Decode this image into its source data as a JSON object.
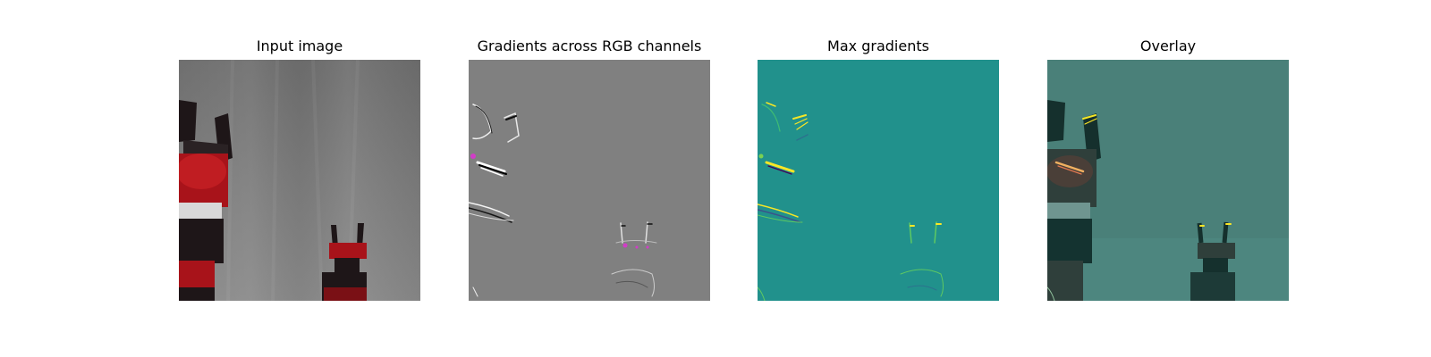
{
  "panels": [
    {
      "title": "Input image"
    },
    {
      "title": "Gradients across RGB channels"
    },
    {
      "title": "Max gradients"
    },
    {
      "title": "Overlay"
    }
  ],
  "colors": {
    "input_background": "#7a7a7a",
    "robot_red": "#a8131a",
    "robot_dark": "#1e1618",
    "gradient_gray": "#808080",
    "max_teal": "#21918c",
    "overlay_teal": "#4a8079",
    "highlight_yellow": "#f5e626",
    "highlight_magenta": "#d23cc8"
  },
  "figure": {
    "type": "image-grid",
    "columns": 4,
    "axes": "off"
  }
}
